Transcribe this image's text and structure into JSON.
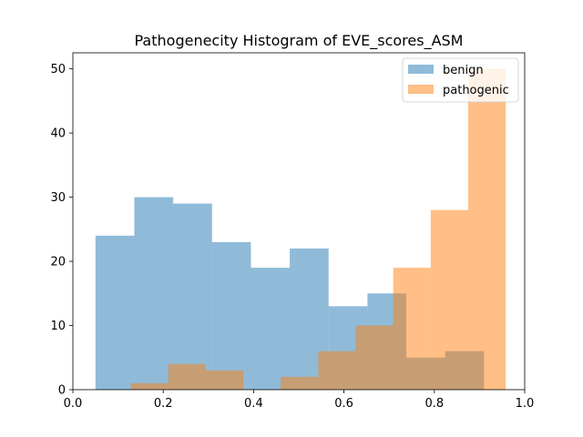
{
  "chart_data": {
    "type": "bar",
    "title": "Pathogenecity Histogram of EVE_scores_ASM",
    "xlabel": "",
    "ylabel": "",
    "xlim": [
      0.0,
      1.0
    ],
    "ylim": [
      0,
      52.5
    ],
    "xticks": [
      "0.0",
      "0.2",
      "0.4",
      "0.6",
      "0.8",
      "1.0"
    ],
    "yticks": [
      "0",
      "10",
      "20",
      "30",
      "40",
      "50"
    ],
    "legend_position": "top-right",
    "grid": false,
    "series": [
      {
        "name": "benign",
        "color": "#1f77b4",
        "opacity": 0.5,
        "bin_edges": [
          0.05,
          0.136,
          0.222,
          0.308,
          0.394,
          0.48,
          0.566,
          0.652,
          0.738,
          0.824,
          0.91
        ],
        "values": [
          24,
          30,
          29,
          23,
          19,
          22,
          13,
          15,
          5,
          6
        ]
      },
      {
        "name": "pathogenic",
        "color": "#ff7f0e",
        "opacity": 0.5,
        "bin_edges": [
          0.128,
          0.211,
          0.294,
          0.377,
          0.46,
          0.543,
          0.626,
          0.709,
          0.792,
          0.875,
          0.958
        ],
        "values": [
          1,
          4,
          3,
          0,
          2,
          6,
          10,
          19,
          28,
          50
        ]
      }
    ]
  }
}
